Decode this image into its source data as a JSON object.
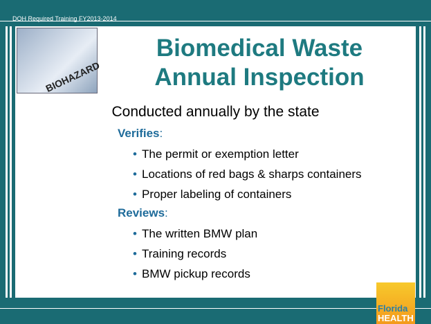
{
  "header": {
    "label": "DOH Required Training FY2013-2014"
  },
  "slide": {
    "title_line1": "Biomedical Waste",
    "title_line2": "Annual Inspection",
    "subtitle": "Conducted annually by the state",
    "sections": [
      {
        "heading": "Verifies",
        "suffix": ":",
        "items": [
          "The permit or exemption letter",
          "Locations of red bags & sharps containers",
          "Proper labeling of containers"
        ]
      },
      {
        "heading": "Reviews",
        "suffix": ":",
        "items": [
          "The written BMW plan",
          "Training records",
          "BMW pickup records"
        ]
      }
    ]
  },
  "logo": {
    "line1": "Florida",
    "line2": "HEALTH"
  },
  "image": {
    "label": "BIOHAZARD"
  }
}
